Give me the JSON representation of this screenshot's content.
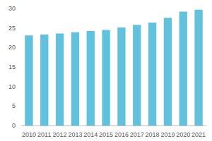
{
  "chart_data": {
    "type": "bar",
    "categories": [
      "2010",
      "2011",
      "2012",
      "2013",
      "2014",
      "2015",
      "2016",
      "2017",
      "2018",
      "2019",
      "2020",
      "2021"
    ],
    "values": [
      23.1,
      23.3,
      23.6,
      23.9,
      24.2,
      24.5,
      25.1,
      25.8,
      26.4,
      27.6,
      29.2,
      29.7
    ],
    "color": "#62c1dc",
    "ylim": [
      0,
      30
    ],
    "yticks": [
      0,
      5,
      10,
      15,
      20,
      25,
      30
    ],
    "grid": false
  }
}
